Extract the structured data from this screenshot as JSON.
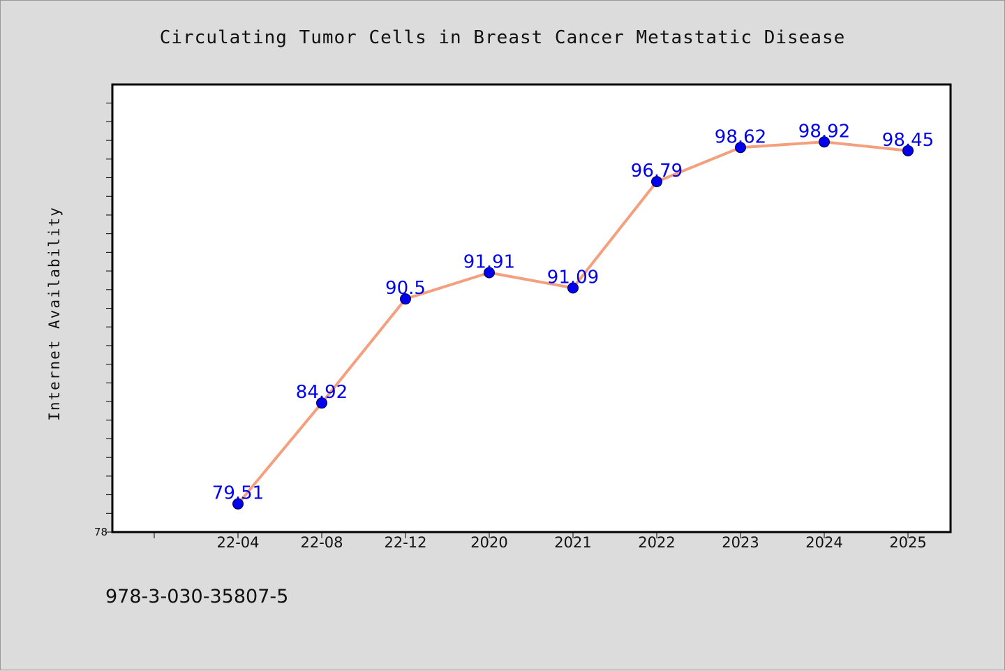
{
  "chart_data": {
    "type": "line",
    "title": "Circulating Tumor Cells in Breast Cancer Metastatic Disease",
    "xlabel": "",
    "ylabel": "Internet Availability",
    "categories": [
      "22-04",
      "22-08",
      "22-12",
      "2020",
      "2021",
      "2022",
      "2023",
      "2024",
      "2025"
    ],
    "series": [
      {
        "values": [
          79.51,
          84.92,
          90.5,
          91.91,
          91.09,
          96.79,
          98.62,
          98.92,
          98.45
        ],
        "data_labels": [
          "79.51",
          "84.92",
          "90.5",
          "91.91",
          "91.09",
          "96.79",
          "98.62",
          "98.92",
          "98.45"
        ]
      }
    ],
    "ylim": [
      78,
      102
    ],
    "ytick_labels": [
      "78"
    ],
    "grid": false,
    "legend": "none"
  },
  "footnote": "978-3-030-35807-5",
  "colors": {
    "background": "#dcdcdc",
    "plot_background": "#ffffff",
    "line": "#f4a07e",
    "marker": "#0000ee",
    "data_label": "#0000ee",
    "axis": "#000000"
  }
}
